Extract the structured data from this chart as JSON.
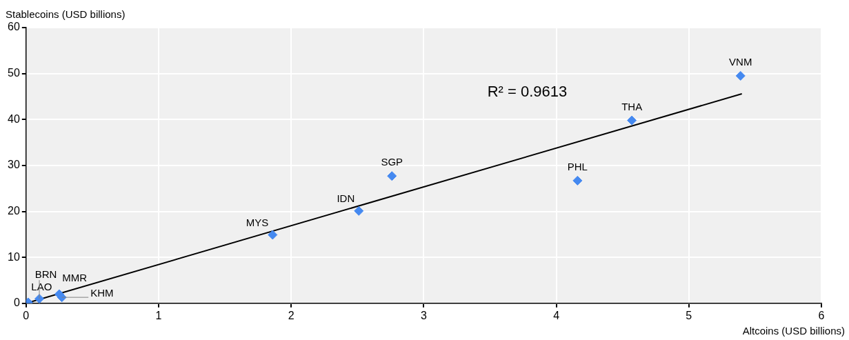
{
  "chart_data": {
    "type": "scatter",
    "xlabel": "Altcoins (USD billions)",
    "ylabel": "Stablecoins (USD billions)",
    "xlim": [
      0,
      6
    ],
    "xticks": [
      0,
      1,
      2,
      3,
      4,
      5,
      6
    ],
    "ylim": [
      0,
      60
    ],
    "yticks": [
      0,
      10,
      20,
      30,
      40,
      50,
      60
    ],
    "grid": true,
    "legend": false,
    "series": [
      {
        "marker": "diamond",
        "color": "#4589f0",
        "x": [
          0.016,
          0.1,
          0.25,
          0.27,
          1.86,
          2.51,
          2.76,
          4.16,
          4.57,
          5.39
        ],
        "values": [
          0.2,
          1,
          2,
          1.3,
          14.9,
          20.1,
          27.7,
          26.7,
          39.8,
          49.5
        ]
      },
      {
        "type": "line",
        "color": "#000000",
        "x": [
          0,
          5.4
        ],
        "values": [
          0,
          45.6
        ]
      }
    ],
    "annotations": [
      {
        "text": "LAO",
        "x": 0.016,
        "y": 0.2
      },
      {
        "text": "BRN",
        "x": 0.1,
        "y": 1
      },
      {
        "text": "MMR",
        "x": 0.25,
        "y": 2
      },
      {
        "text": "KHM",
        "x": 0.27,
        "y": 1.3
      },
      {
        "text": "MYS",
        "x": 1.86,
        "y": 14.9
      },
      {
        "text": "IDN",
        "x": 2.51,
        "y": 20.1
      },
      {
        "text": "SGP",
        "x": 2.76,
        "y": 27.7
      },
      {
        "text": "PHL",
        "x": 4.16,
        "y": 26.7
      },
      {
        "text": "THA",
        "x": 4.57,
        "y": 39.8
      },
      {
        "text": "VNM",
        "x": 5.39,
        "y": 49.5
      },
      "R² = 0.9613"
    ]
  }
}
